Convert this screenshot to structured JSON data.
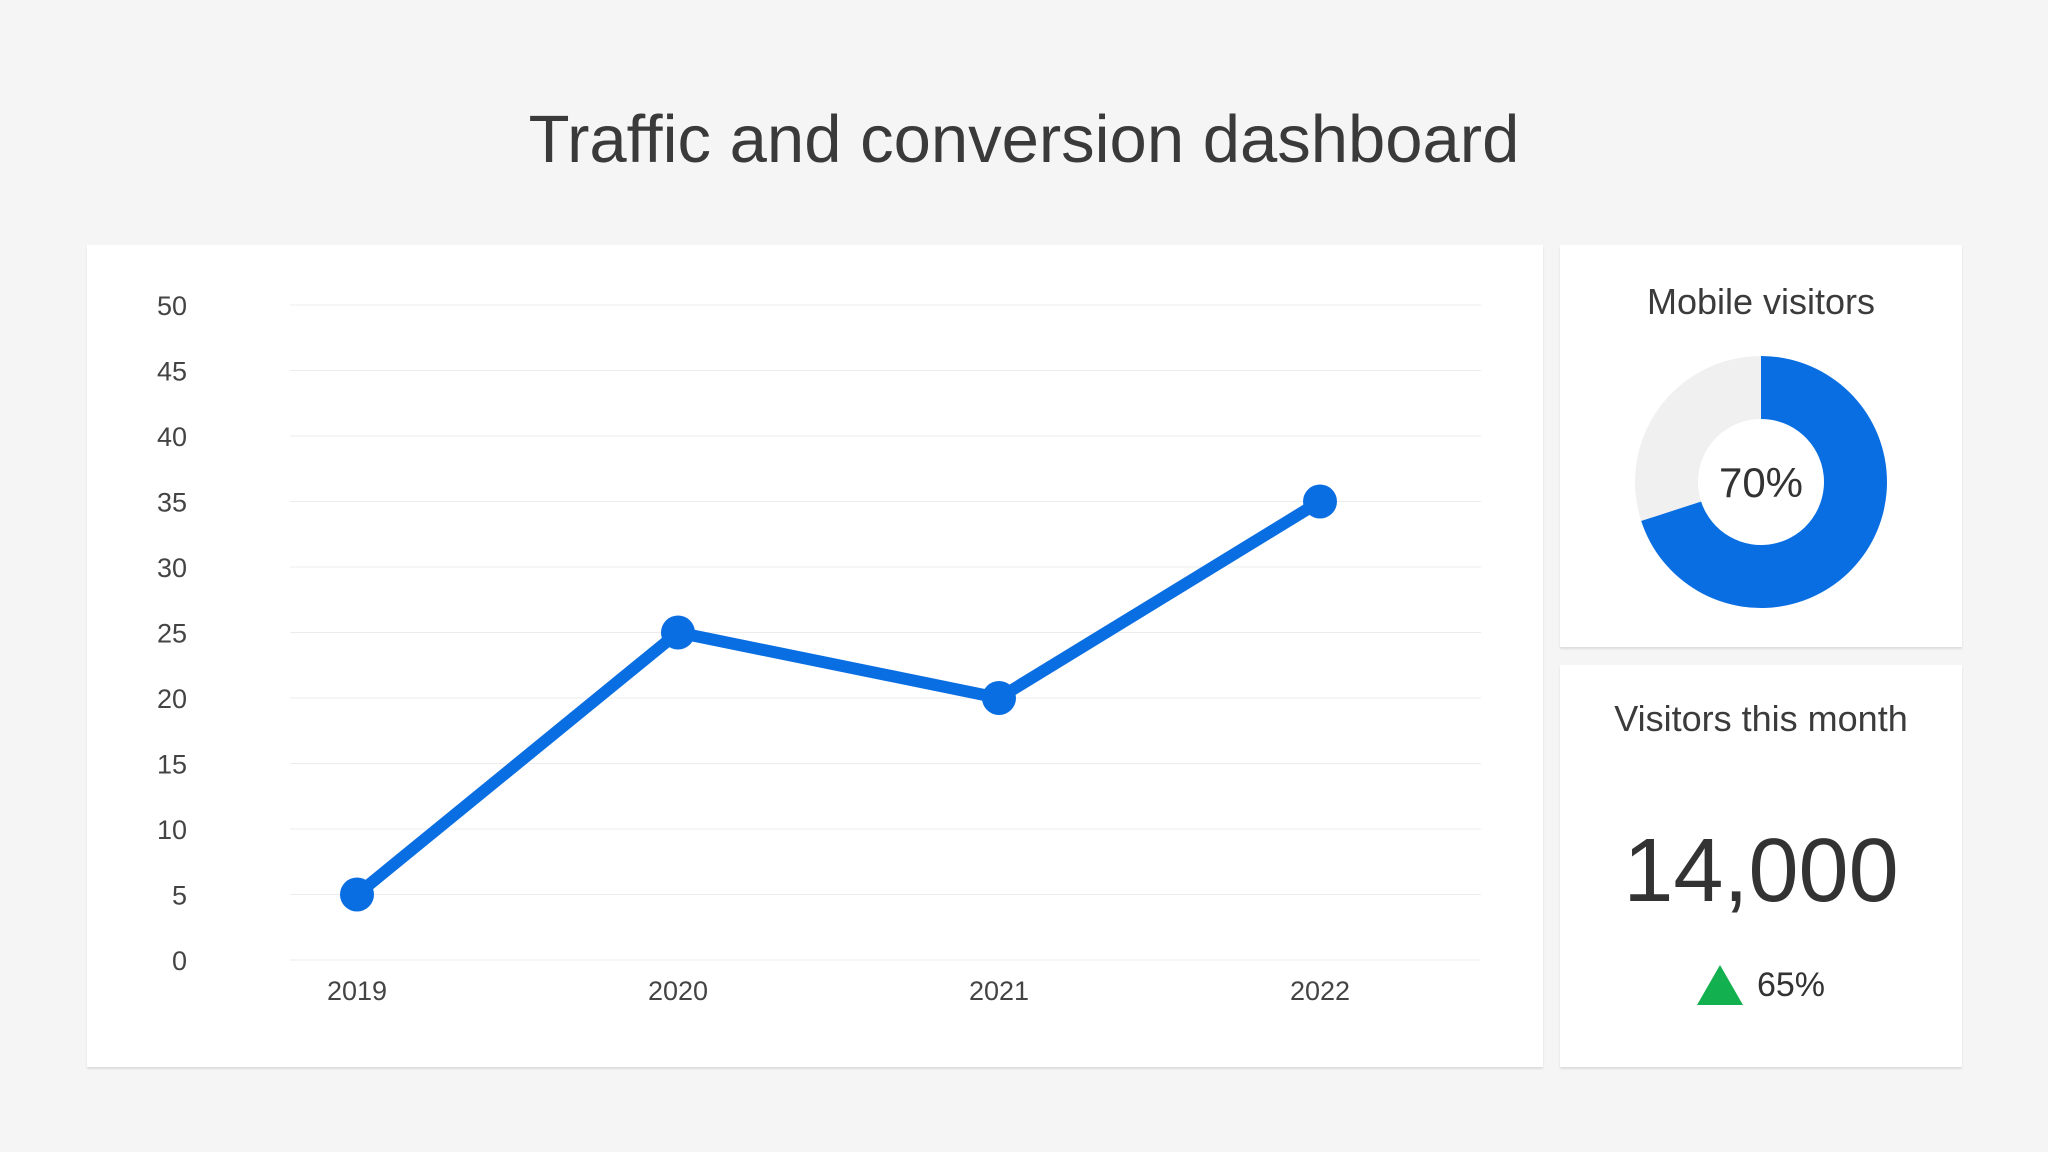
{
  "header": {
    "title": "Traffic and conversion dashboard"
  },
  "colors": {
    "accent": "#0a6ee3",
    "donut_rest": "#f0f0f0",
    "up_arrow": "#12b04f",
    "grid": "#ececec",
    "axis_text": "#444444"
  },
  "chart_data": [
    {
      "type": "line",
      "title": "",
      "xlabel": "",
      "ylabel": "",
      "x": [
        "2019",
        "2020",
        "2021",
        "2022"
      ],
      "values": [
        5,
        25,
        20,
        35
      ],
      "ylim": [
        0,
        50
      ],
      "yticks": [
        "0",
        "5",
        "10",
        "15",
        "20",
        "25",
        "30",
        "35",
        "40",
        "45",
        "50"
      ],
      "grid": true
    },
    {
      "type": "pie",
      "title": "Mobile visitors",
      "values": [
        70,
        30
      ],
      "center_label": "70%"
    }
  ],
  "kpi": {
    "title": "Visitors this month",
    "value": "14,000",
    "change": "65%",
    "trend_icon": "triangle-up-icon"
  }
}
